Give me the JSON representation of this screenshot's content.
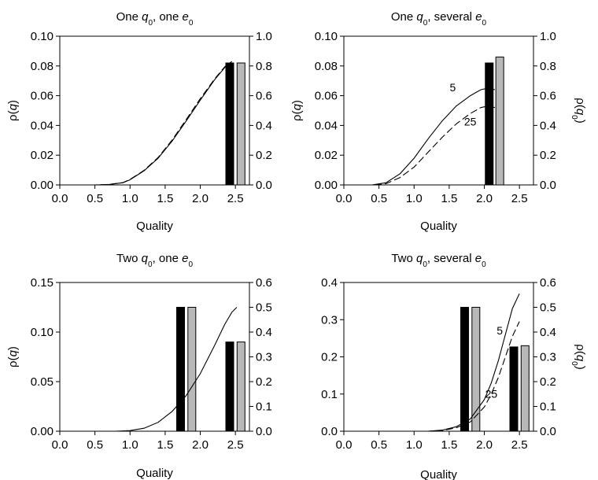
{
  "chart_data": [
    {
      "type": "line",
      "title_parts": [
        "One ",
        "q",
        "0",
        ", one ",
        "e",
        "0"
      ],
      "xlabel": "Quality",
      "ylabel_left_parts": [
        "ρ(",
        "q",
        ")"
      ],
      "ylabel_right_parts": [],
      "xlim": [
        0,
        2.7
      ],
      "ylim_left": [
        0,
        0.1
      ],
      "ylim_right": [
        0,
        1.0
      ],
      "x_ticks": [
        "0.0",
        "0.5",
        "1.0",
        "1.5",
        "2.0",
        "2.5"
      ],
      "y_left_ticks": [
        "0.00",
        "0.02",
        "0.04",
        "0.06",
        "0.08",
        "0.10"
      ],
      "y_right_ticks": [
        "0.0",
        "0.2",
        "0.4",
        "0.6",
        "0.8",
        "1.0"
      ],
      "series": [
        {
          "style": "solid",
          "x": [
            0.0,
            0.5,
            0.7,
            0.9,
            1.0,
            1.2,
            1.4,
            1.6,
            1.8,
            2.0,
            2.2,
            2.35,
            2.45
          ],
          "y": [
            0.0,
            0.0,
            0.0003,
            0.0015,
            0.0035,
            0.0095,
            0.018,
            0.0295,
            0.043,
            0.057,
            0.0705,
            0.079,
            0.082
          ]
        },
        {
          "style": "dashed",
          "x": [
            0.0,
            0.5,
            0.7,
            0.9,
            1.0,
            1.2,
            1.4,
            1.6,
            1.8,
            2.0,
            2.2,
            2.35,
            2.45
          ],
          "y": [
            0.0,
            0.0,
            0.0003,
            0.0016,
            0.0037,
            0.0098,
            0.0185,
            0.0302,
            0.044,
            0.058,
            0.071,
            0.0795,
            0.083
          ]
        }
      ],
      "bars_right_axis": [
        {
          "x": 2.42,
          "value": 0.82,
          "color": "#000000"
        },
        {
          "x": 2.58,
          "value": 0.82,
          "color": "#b8b8b8"
        }
      ],
      "annotations": []
    },
    {
      "type": "line",
      "title_parts": [
        "One ",
        "q",
        "0",
        ", several ",
        "e",
        "0"
      ],
      "xlabel": "Quality",
      "ylabel_left_parts": [
        "ρ(",
        "q",
        ")"
      ],
      "ylabel_right_parts": [
        "ρ(",
        "q",
        "0",
        ")"
      ],
      "xlim": [
        0,
        2.7
      ],
      "ylim_left": [
        0,
        0.1
      ],
      "ylim_right": [
        0,
        1.0
      ],
      "x_ticks": [
        "0.0",
        "0.5",
        "1.0",
        "1.5",
        "2.0",
        "2.5"
      ],
      "y_left_ticks": [
        "0.00",
        "0.02",
        "0.04",
        "0.06",
        "0.08",
        "0.10"
      ],
      "y_right_ticks": [
        "0.0",
        "0.2",
        "0.4",
        "0.6",
        "0.8",
        "1.0"
      ],
      "series": [
        {
          "style": "solid",
          "x": [
            0.0,
            0.4,
            0.6,
            0.8,
            1.0,
            1.2,
            1.4,
            1.6,
            1.8,
            1.95,
            2.05,
            2.15
          ],
          "y": [
            0.0,
            0.0,
            0.0015,
            0.0075,
            0.018,
            0.031,
            0.043,
            0.053,
            0.06,
            0.064,
            0.065,
            0.064
          ]
        },
        {
          "style": "dashed",
          "x": [
            0.0,
            0.4,
            0.6,
            0.8,
            1.0,
            1.2,
            1.4,
            1.6,
            1.8,
            1.95,
            2.05,
            2.15
          ],
          "y": [
            0.0,
            0.0,
            0.0008,
            0.005,
            0.012,
            0.022,
            0.032,
            0.041,
            0.048,
            0.052,
            0.053,
            0.052
          ]
        }
      ],
      "bars_right_axis": [
        {
          "x": 2.07,
          "value": 0.82,
          "color": "#000000"
        },
        {
          "x": 2.22,
          "value": 0.86,
          "color": "#b8b8b8"
        }
      ],
      "annotations": [
        {
          "text": "5",
          "x": 1.55,
          "y": 0.063
        },
        {
          "text": "25",
          "x": 1.8,
          "y": 0.04
        }
      ]
    },
    {
      "type": "line",
      "title_parts": [
        "Two ",
        "q",
        "0",
        ", one ",
        "e",
        "0"
      ],
      "xlabel": "Quality",
      "ylabel_left_parts": [
        "ρ(",
        "q",
        ")"
      ],
      "ylabel_right_parts": [],
      "xlim": [
        0,
        2.7
      ],
      "ylim_left": [
        0,
        0.15
      ],
      "ylim_right": [
        0,
        0.6
      ],
      "x_ticks": [
        "0.0",
        "0.5",
        "1.0",
        "1.5",
        "2.0",
        "2.5"
      ],
      "y_left_ticks": [
        "0.00",
        "0.05",
        "0.10",
        "0.15"
      ],
      "y_right_ticks": [
        "0.0",
        "0.1",
        "0.2",
        "0.3",
        "0.4",
        "0.5",
        "0.6"
      ],
      "series": [
        {
          "style": "solid",
          "x": [
            0.0,
            0.8,
            1.0,
            1.2,
            1.4,
            1.6,
            1.8,
            2.0,
            2.2,
            2.35,
            2.45,
            2.52
          ],
          "y": [
            0.0,
            0.0,
            0.0006,
            0.003,
            0.009,
            0.02,
            0.036,
            0.058,
            0.086,
            0.108,
            0.12,
            0.125
          ]
        }
      ],
      "bars_right_axis": [
        {
          "x": 1.72,
          "value": 0.5,
          "color": "#000000"
        },
        {
          "x": 1.88,
          "value": 0.5,
          "color": "#b8b8b8"
        },
        {
          "x": 2.42,
          "value": 0.36,
          "color": "#000000"
        },
        {
          "x": 2.58,
          "value": 0.36,
          "color": "#b8b8b8"
        }
      ],
      "annotations": []
    },
    {
      "type": "line",
      "title_parts": [
        "Two ",
        "q",
        "0",
        ", several ",
        "e",
        "0"
      ],
      "xlabel": "Quality",
      "ylabel_left_parts": [],
      "ylabel_right_parts": [
        "ρ(",
        "q",
        "0",
        ")"
      ],
      "xlim": [
        0,
        2.7
      ],
      "ylim_left": [
        0,
        0.4
      ],
      "ylim_right": [
        0,
        0.6
      ],
      "x_ticks": [
        "0.0",
        "0.5",
        "1.0",
        "1.5",
        "2.0",
        "2.5"
      ],
      "y_left_ticks": [
        "0.0",
        "0.1",
        "0.2",
        "0.3",
        "0.4"
      ],
      "y_right_ticks": [
        "0.0",
        "0.1",
        "0.2",
        "0.3",
        "0.4",
        "0.5",
        "0.6"
      ],
      "series": [
        {
          "style": "solid",
          "x": [
            0.0,
            1.2,
            1.4,
            1.6,
            1.8,
            2.0,
            2.1,
            2.2,
            2.3,
            2.4,
            2.5
          ],
          "y": [
            0.0,
            0.0,
            0.003,
            0.012,
            0.033,
            0.085,
            0.13,
            0.19,
            0.26,
            0.33,
            0.37
          ]
        },
        {
          "style": "dashed",
          "x": [
            0.0,
            1.2,
            1.4,
            1.6,
            1.8,
            2.0,
            2.1,
            2.2,
            2.3,
            2.4,
            2.5
          ],
          "y": [
            0.0,
            0.0,
            0.002,
            0.009,
            0.025,
            0.065,
            0.1,
            0.145,
            0.2,
            0.255,
            0.295
          ]
        }
      ],
      "bars_right_axis": [
        {
          "x": 1.72,
          "value": 0.5,
          "color": "#000000"
        },
        {
          "x": 1.88,
          "value": 0.5,
          "color": "#b8b8b8"
        },
        {
          "x": 2.42,
          "value": 0.34,
          "color": "#000000"
        },
        {
          "x": 2.58,
          "value": 0.345,
          "color": "#b8b8b8"
        }
      ],
      "annotations": [
        {
          "text": "5",
          "x": 2.22,
          "y": 0.26
        },
        {
          "text": "25",
          "x": 2.1,
          "y": 0.09
        }
      ]
    }
  ]
}
